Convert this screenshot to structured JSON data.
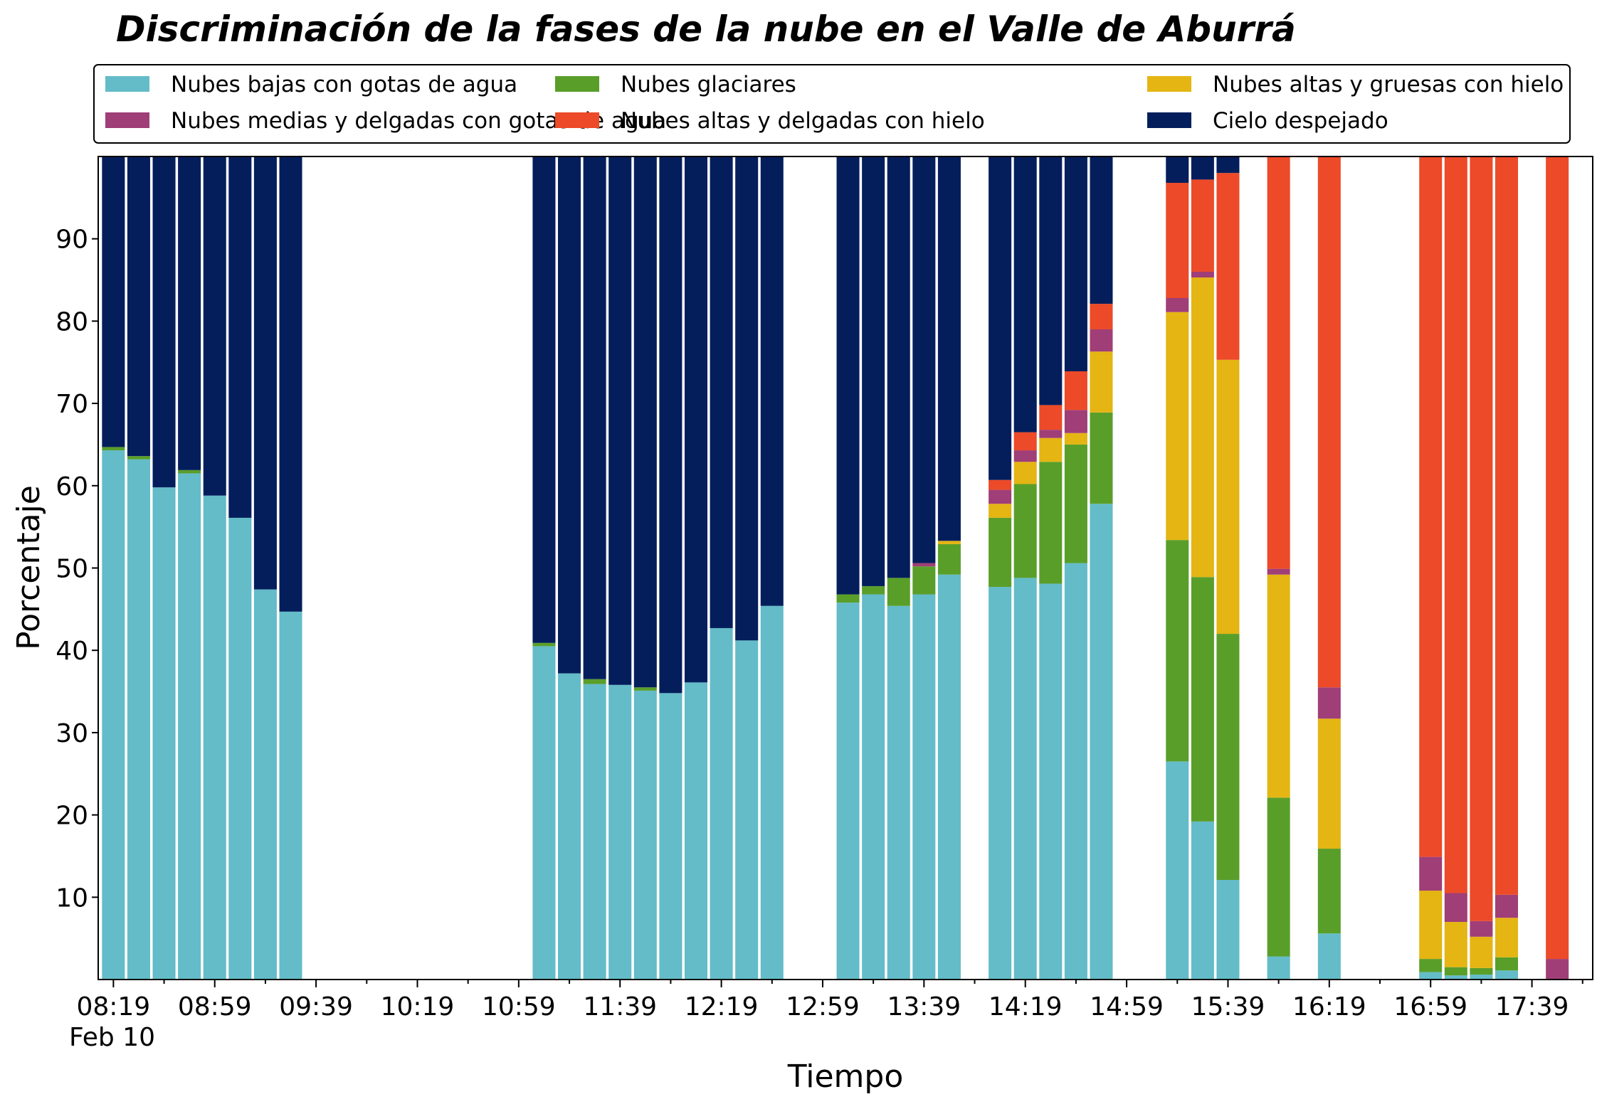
{
  "chart_data": {
    "type": "bar",
    "stacked": true,
    "title": "Discriminación de la fases de la nube en el Valle de Aburrá",
    "xlabel": "Tiempo",
    "ylabel": "Porcentaje",
    "date_label": "Feb 10",
    "ylim": [
      0,
      100
    ],
    "yticks": [
      10,
      20,
      30,
      40,
      50,
      60,
      70,
      80,
      90
    ],
    "x_domain": [
      "08:13",
      "18:03"
    ],
    "xticks_major": [
      "08:19",
      "08:59",
      "09:39",
      "10:19",
      "10:59",
      "11:39",
      "12:19",
      "12:59",
      "13:39",
      "14:19",
      "14:59",
      "15:39",
      "16:19",
      "16:59",
      "17:39"
    ],
    "xticks_minor": [
      "08:39",
      "09:19",
      "09:59",
      "10:39",
      "11:19",
      "11:59",
      "12:39",
      "13:19",
      "13:59",
      "14:39",
      "15:19",
      "15:59",
      "16:39",
      "17:19",
      "17:59"
    ],
    "bar_width_minutes": 9,
    "legend_position": "top",
    "series": [
      {
        "name": "Nubes bajas con gotas de agua",
        "color": "#63bcc8"
      },
      {
        "name": "Nubes glaciares",
        "color": "#5a9e2a"
      },
      {
        "name": "Nubes altas y gruesas con hielo",
        "color": "#e4b513"
      },
      {
        "name": "Nubes medias y delgadas con gotas de agua",
        "color": "#a03e77"
      },
      {
        "name": "Nubes altas y delgadas con hielo",
        "color": "#ec4a28"
      },
      {
        "name": "Cielo despejado",
        "color": "#041e5c"
      }
    ],
    "bars": [
      {
        "time": "08:19",
        "values": [
          64.3,
          0.4,
          0,
          0,
          0,
          35.3
        ]
      },
      {
        "time": "08:29",
        "values": [
          63.2,
          0.4,
          0,
          0,
          0,
          36.4
        ]
      },
      {
        "time": "08:39",
        "values": [
          59.8,
          0,
          0,
          0,
          0,
          40.2
        ]
      },
      {
        "time": "08:49",
        "values": [
          61.5,
          0.4,
          0,
          0,
          0,
          38.1
        ]
      },
      {
        "time": "08:59",
        "values": [
          58.8,
          0,
          0,
          0,
          0,
          41.2
        ]
      },
      {
        "time": "09:09",
        "values": [
          56.1,
          0,
          0,
          0,
          0,
          43.9
        ]
      },
      {
        "time": "09:19",
        "values": [
          47.4,
          0,
          0,
          0,
          0,
          52.6
        ]
      },
      {
        "time": "09:29",
        "values": [
          44.7,
          0,
          0,
          0,
          0,
          55.3
        ]
      },
      {
        "time": "11:09",
        "values": [
          40.5,
          0.4,
          0,
          0,
          0,
          59.1
        ]
      },
      {
        "time": "11:19",
        "values": [
          37.2,
          0,
          0,
          0,
          0,
          62.8
        ]
      },
      {
        "time": "11:29",
        "values": [
          35.9,
          0.6,
          0,
          0,
          0,
          63.5
        ]
      },
      {
        "time": "11:39",
        "values": [
          35.8,
          0,
          0,
          0,
          0,
          64.2
        ]
      },
      {
        "time": "11:49",
        "values": [
          35.1,
          0.4,
          0,
          0,
          0,
          64.5
        ]
      },
      {
        "time": "11:59",
        "values": [
          34.8,
          0,
          0,
          0,
          0,
          65.2
        ]
      },
      {
        "time": "12:09",
        "values": [
          36.1,
          0,
          0,
          0,
          0,
          63.9
        ]
      },
      {
        "time": "12:19",
        "values": [
          42.7,
          0,
          0,
          0,
          0,
          57.3
        ]
      },
      {
        "time": "12:29",
        "values": [
          41.2,
          0,
          0,
          0,
          0,
          58.8
        ]
      },
      {
        "time": "12:39",
        "values": [
          45.4,
          0,
          0,
          0,
          0,
          54.6
        ]
      },
      {
        "time": "13:09",
        "values": [
          45.8,
          1.0,
          0,
          0,
          0,
          53.2
        ]
      },
      {
        "time": "13:19",
        "values": [
          46.8,
          1.0,
          0,
          0,
          0,
          52.2
        ]
      },
      {
        "time": "13:29",
        "values": [
          45.4,
          3.4,
          0,
          0,
          0,
          51.2
        ]
      },
      {
        "time": "13:39",
        "values": [
          46.8,
          3.4,
          0,
          0.4,
          0,
          49.4
        ]
      },
      {
        "time": "13:49",
        "values": [
          49.2,
          3.7,
          0.4,
          0,
          0,
          46.7
        ]
      },
      {
        "time": "14:09",
        "values": [
          47.7,
          8.4,
          1.7,
          1.7,
          1.2,
          39.3
        ]
      },
      {
        "time": "14:19",
        "values": [
          48.8,
          11.4,
          2.7,
          1.4,
          2.2,
          33.5
        ]
      },
      {
        "time": "14:29",
        "values": [
          48.1,
          14.8,
          2.9,
          1.0,
          3.0,
          30.2
        ]
      },
      {
        "time": "14:39",
        "values": [
          50.6,
          14.4,
          1.4,
          2.8,
          4.7,
          26.1
        ]
      },
      {
        "time": "14:49",
        "values": [
          57.8,
          11.1,
          7.4,
          2.7,
          3.1,
          17.9
        ]
      },
      {
        "time": "15:19",
        "values": [
          26.5,
          26.9,
          27.7,
          1.7,
          14.0,
          3.2
        ]
      },
      {
        "time": "15:29",
        "values": [
          19.2,
          29.7,
          36.4,
          0.7,
          11.2,
          2.8
        ]
      },
      {
        "time": "15:39",
        "values": [
          12.1,
          29.9,
          33.3,
          0,
          22.7,
          2.0
        ]
      },
      {
        "time": "15:59",
        "values": [
          2.8,
          19.3,
          27.1,
          0.7,
          50.1,
          0
        ]
      },
      {
        "time": "16:19",
        "values": [
          5.6,
          10.3,
          15.8,
          3.8,
          64.5,
          0
        ]
      },
      {
        "time": "16:59",
        "values": [
          0.9,
          1.6,
          8.3,
          4.1,
          85.1,
          0
        ]
      },
      {
        "time": "17:09",
        "values": [
          0.5,
          1.0,
          5.5,
          3.5,
          89.5,
          0
        ]
      },
      {
        "time": "17:19",
        "values": [
          0.6,
          0.8,
          3.8,
          1.9,
          92.9,
          0
        ]
      },
      {
        "time": "17:29",
        "values": [
          1.1,
          1.6,
          4.8,
          2.8,
          89.7,
          0
        ]
      },
      {
        "time": "17:49",
        "values": [
          0,
          0,
          0,
          2.5,
          97.5,
          0
        ]
      }
    ]
  }
}
